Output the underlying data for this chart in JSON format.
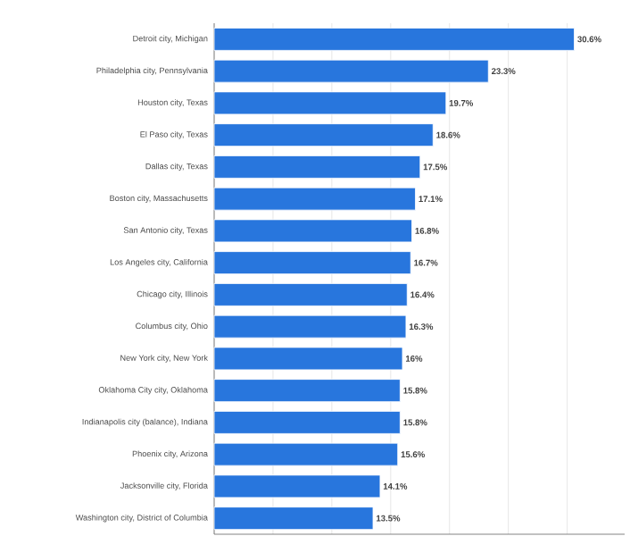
{
  "chart_data": {
    "type": "bar",
    "orientation": "horizontal",
    "color": "#2876dd",
    "categories": [
      "Detroit city, Michigan",
      "Philadelphia city, Pennsylvania",
      "Houston city, Texas",
      "El Paso city, Texas",
      "Dallas city, Texas",
      "Boston city, Massachusetts",
      "San Antonio city, Texas",
      "Los Angeles city, California",
      "Chicago city, Illinois",
      "Columbus city, Ohio",
      "New York city, New York",
      "Oklahoma City city, Oklahoma",
      "Indianapolis city (balance), Indiana",
      "Phoenix city, Arizona",
      "Jacksonville city, Florida",
      "Washington city, District of Columbia"
    ],
    "values": [
      30.6,
      23.3,
      19.7,
      18.6,
      17.5,
      17.1,
      16.8,
      16.7,
      16.4,
      16.3,
      16,
      15.8,
      15.8,
      15.6,
      14.1,
      13.5
    ],
    "value_labels": [
      "30.6%",
      "23.3%",
      "19.7%",
      "18.6%",
      "17.5%",
      "17.1%",
      "16.8%",
      "16.7%",
      "16.4%",
      "16.3%",
      "16%",
      "15.8%",
      "15.8%",
      "15.6%",
      "14.1%",
      "13.5%"
    ],
    "grid": "x",
    "tick_labels": "y"
  }
}
